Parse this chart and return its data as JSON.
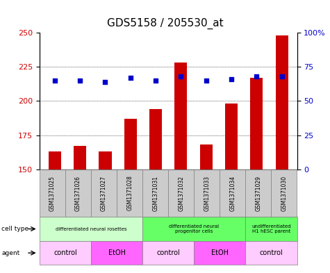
{
  "title": "GDS5158 / 205530_at",
  "samples": [
    "GSM1371025",
    "GSM1371026",
    "GSM1371027",
    "GSM1371028",
    "GSM1371031",
    "GSM1371032",
    "GSM1371033",
    "GSM1371034",
    "GSM1371029",
    "GSM1371030"
  ],
  "counts": [
    163,
    167,
    163,
    187,
    194,
    228,
    168,
    198,
    217,
    248
  ],
  "percentile_ranks": [
    65,
    65,
    64,
    67,
    65,
    68,
    65,
    66,
    68,
    68
  ],
  "ylim_left": [
    150,
    250
  ],
  "ylim_right": [
    0,
    100
  ],
  "yticks_left": [
    150,
    175,
    200,
    225,
    250
  ],
  "yticks_right": [
    0,
    25,
    50,
    75,
    100
  ],
  "bar_color": "#cc0000",
  "dot_color": "#0000cc",
  "background_color": "#ffffff",
  "plot_bg_color": "#ffffff",
  "cell_type_groups": [
    {
      "label": "differentiated neural rosettes",
      "start": 0,
      "end": 4,
      "color": "#ccffcc"
    },
    {
      "label": "differentiated neural\nprogenitor cells",
      "start": 4,
      "end": 8,
      "color": "#66ff66"
    },
    {
      "label": "undifferentiated\nH1 hESC parent",
      "start": 8,
      "end": 10,
      "color": "#66ff66"
    }
  ],
  "agent_groups": [
    {
      "label": "control",
      "start": 0,
      "end": 2,
      "color": "#ffccff"
    },
    {
      "label": "EtOH",
      "start": 2,
      "end": 4,
      "color": "#ff66ff"
    },
    {
      "label": "control",
      "start": 4,
      "end": 6,
      "color": "#ffccff"
    },
    {
      "label": "EtOH",
      "start": 6,
      "end": 8,
      "color": "#ff66ff"
    },
    {
      "label": "control",
      "start": 8,
      "end": 10,
      "color": "#ffccff"
    }
  ],
  "sample_bg_color": "#cccccc",
  "title_fontsize": 11,
  "axis_label_fontsize": 8,
  "tick_fontsize": 8
}
